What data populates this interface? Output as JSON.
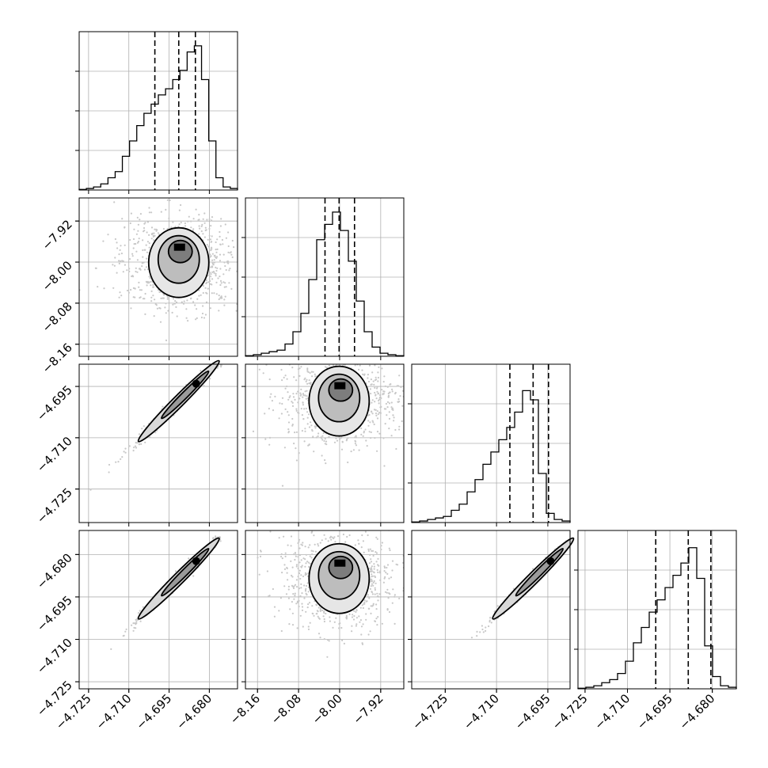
{
  "chart_data": {
    "type": "corner",
    "parameters": [
      {
        "ticks": [
          -4.725,
          -4.71,
          -4.695,
          -4.68
        ],
        "tick_labels": [
          "−4.725",
          "−4.710",
          "−4.695",
          "−4.680"
        ],
        "range": [
          -4.7285,
          -4.6695
        ],
        "hist_max": 48,
        "hist": [
          0.2,
          0.5,
          1,
          2,
          4,
          6,
          11,
          16,
          21,
          25,
          28,
          31,
          33,
          36,
          39,
          45,
          47,
          36,
          16,
          4,
          1,
          0.5
        ],
        "quantiles": [
          -4.7003,
          -4.6914,
          -4.6852
        ]
      },
      {
        "ticks": [
          -8.16,
          -8.08,
          -8.0,
          -7.92
        ],
        "tick_labels": [
          "−8.16",
          "−8.08",
          "−8.00",
          "−7.92"
        ],
        "range": [
          -8.1835,
          -7.875
        ],
        "hist_max": 48,
        "hist": [
          0.2,
          0.5,
          1,
          1.5,
          2,
          4,
          8,
          14,
          25,
          38,
          43,
          47,
          41,
          31,
          18,
          8,
          3,
          1,
          0.5,
          0.2
        ],
        "quantiles": [
          -8.0285,
          -8.001,
          -7.971
        ]
      },
      {
        "ticks": [
          -4.725,
          -4.71,
          -4.695
        ],
        "tick_labels": [
          "−4.725",
          "−4.710",
          "−4.695"
        ],
        "range": [
          -4.7348,
          -4.6885
        ],
        "hist_max": 48,
        "hist": [
          0.2,
          0.5,
          1,
          1.5,
          2,
          4,
          6,
          10,
          14,
          19,
          23,
          27,
          31,
          36,
          43,
          40,
          16,
          3,
          1,
          0.5
        ],
        "quantiles": [
          -4.7061,
          -4.6993,
          -4.6948
        ]
      },
      {
        "ticks": [
          -4.725,
          -4.71,
          -4.695,
          -4.68
        ],
        "tick_labels": [
          "−4.725",
          "−4.710",
          "−4.695",
          "−4.680"
        ],
        "range": [
          -4.7275,
          -4.6715
        ],
        "hist_max": 48,
        "hist": [
          0.2,
          0.5,
          1,
          2,
          3,
          5,
          9,
          15,
          20,
          25,
          29,
          33,
          37,
          41,
          46,
          36,
          14,
          4,
          1,
          0.5
        ],
        "quantiles": [
          -4.7,
          -4.6885,
          -4.6805
        ]
      }
    ],
    "pairs": [
      {
        "row": 1,
        "col": 0,
        "corr": 0.1,
        "sx": 0.5,
        "sy": 0.5
      },
      {
        "row": 2,
        "col": 0,
        "corr": 0.995,
        "sx": 0.55,
        "sy": 0.55
      },
      {
        "row": 2,
        "col": 1,
        "corr": 0.05,
        "sx": 0.45,
        "sy": 0.6
      },
      {
        "row": 3,
        "col": 0,
        "corr": 0.995,
        "sx": 0.55,
        "sy": 0.55
      },
      {
        "row": 3,
        "col": 1,
        "corr": 0.05,
        "sx": 0.45,
        "sy": 0.6
      },
      {
        "row": 3,
        "col": 2,
        "corr": 0.995,
        "sx": 0.55,
        "sy": 0.55
      }
    ],
    "grid": true
  }
}
